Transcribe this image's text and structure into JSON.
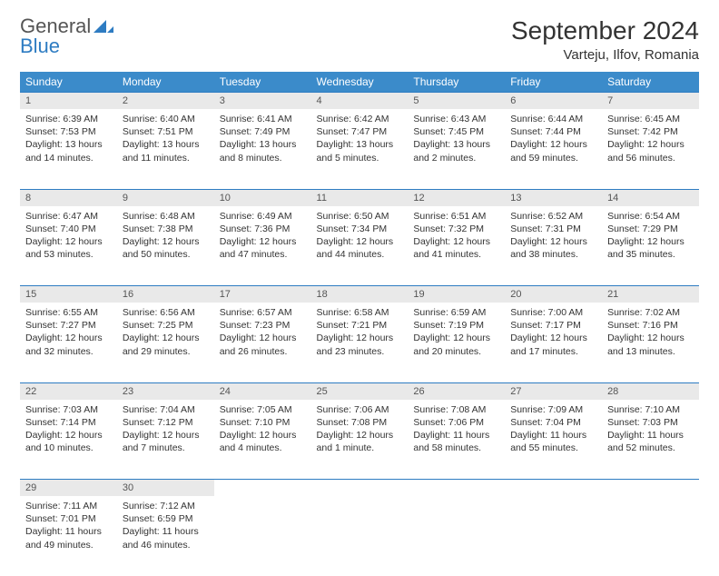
{
  "brand": {
    "name_gray": "General",
    "name_blue": "Blue",
    "accent": "#2e7cc2"
  },
  "title": "September 2024",
  "location": "Varteju, Ilfov, Romania",
  "colors": {
    "header_bg": "#3b8bca",
    "header_text": "#ffffff",
    "daynum_bg": "#e9e9e9",
    "border": "#2e7cc2",
    "text": "#333333"
  },
  "day_headers": [
    "Sunday",
    "Monday",
    "Tuesday",
    "Wednesday",
    "Thursday",
    "Friday",
    "Saturday"
  ],
  "weeks": [
    [
      {
        "n": "1",
        "sr": "Sunrise: 6:39 AM",
        "ss": "Sunset: 7:53 PM",
        "dl": "Daylight: 13 hours and 14 minutes."
      },
      {
        "n": "2",
        "sr": "Sunrise: 6:40 AM",
        "ss": "Sunset: 7:51 PM",
        "dl": "Daylight: 13 hours and 11 minutes."
      },
      {
        "n": "3",
        "sr": "Sunrise: 6:41 AM",
        "ss": "Sunset: 7:49 PM",
        "dl": "Daylight: 13 hours and 8 minutes."
      },
      {
        "n": "4",
        "sr": "Sunrise: 6:42 AM",
        "ss": "Sunset: 7:47 PM",
        "dl": "Daylight: 13 hours and 5 minutes."
      },
      {
        "n": "5",
        "sr": "Sunrise: 6:43 AM",
        "ss": "Sunset: 7:45 PM",
        "dl": "Daylight: 13 hours and 2 minutes."
      },
      {
        "n": "6",
        "sr": "Sunrise: 6:44 AM",
        "ss": "Sunset: 7:44 PM",
        "dl": "Daylight: 12 hours and 59 minutes."
      },
      {
        "n": "7",
        "sr": "Sunrise: 6:45 AM",
        "ss": "Sunset: 7:42 PM",
        "dl": "Daylight: 12 hours and 56 minutes."
      }
    ],
    [
      {
        "n": "8",
        "sr": "Sunrise: 6:47 AM",
        "ss": "Sunset: 7:40 PM",
        "dl": "Daylight: 12 hours and 53 minutes."
      },
      {
        "n": "9",
        "sr": "Sunrise: 6:48 AM",
        "ss": "Sunset: 7:38 PM",
        "dl": "Daylight: 12 hours and 50 minutes."
      },
      {
        "n": "10",
        "sr": "Sunrise: 6:49 AM",
        "ss": "Sunset: 7:36 PM",
        "dl": "Daylight: 12 hours and 47 minutes."
      },
      {
        "n": "11",
        "sr": "Sunrise: 6:50 AM",
        "ss": "Sunset: 7:34 PM",
        "dl": "Daylight: 12 hours and 44 minutes."
      },
      {
        "n": "12",
        "sr": "Sunrise: 6:51 AM",
        "ss": "Sunset: 7:32 PM",
        "dl": "Daylight: 12 hours and 41 minutes."
      },
      {
        "n": "13",
        "sr": "Sunrise: 6:52 AM",
        "ss": "Sunset: 7:31 PM",
        "dl": "Daylight: 12 hours and 38 minutes."
      },
      {
        "n": "14",
        "sr": "Sunrise: 6:54 AM",
        "ss": "Sunset: 7:29 PM",
        "dl": "Daylight: 12 hours and 35 minutes."
      }
    ],
    [
      {
        "n": "15",
        "sr": "Sunrise: 6:55 AM",
        "ss": "Sunset: 7:27 PM",
        "dl": "Daylight: 12 hours and 32 minutes."
      },
      {
        "n": "16",
        "sr": "Sunrise: 6:56 AM",
        "ss": "Sunset: 7:25 PM",
        "dl": "Daylight: 12 hours and 29 minutes."
      },
      {
        "n": "17",
        "sr": "Sunrise: 6:57 AM",
        "ss": "Sunset: 7:23 PM",
        "dl": "Daylight: 12 hours and 26 minutes."
      },
      {
        "n": "18",
        "sr": "Sunrise: 6:58 AM",
        "ss": "Sunset: 7:21 PM",
        "dl": "Daylight: 12 hours and 23 minutes."
      },
      {
        "n": "19",
        "sr": "Sunrise: 6:59 AM",
        "ss": "Sunset: 7:19 PM",
        "dl": "Daylight: 12 hours and 20 minutes."
      },
      {
        "n": "20",
        "sr": "Sunrise: 7:00 AM",
        "ss": "Sunset: 7:17 PM",
        "dl": "Daylight: 12 hours and 17 minutes."
      },
      {
        "n": "21",
        "sr": "Sunrise: 7:02 AM",
        "ss": "Sunset: 7:16 PM",
        "dl": "Daylight: 12 hours and 13 minutes."
      }
    ],
    [
      {
        "n": "22",
        "sr": "Sunrise: 7:03 AM",
        "ss": "Sunset: 7:14 PM",
        "dl": "Daylight: 12 hours and 10 minutes."
      },
      {
        "n": "23",
        "sr": "Sunrise: 7:04 AM",
        "ss": "Sunset: 7:12 PM",
        "dl": "Daylight: 12 hours and 7 minutes."
      },
      {
        "n": "24",
        "sr": "Sunrise: 7:05 AM",
        "ss": "Sunset: 7:10 PM",
        "dl": "Daylight: 12 hours and 4 minutes."
      },
      {
        "n": "25",
        "sr": "Sunrise: 7:06 AM",
        "ss": "Sunset: 7:08 PM",
        "dl": "Daylight: 12 hours and 1 minute."
      },
      {
        "n": "26",
        "sr": "Sunrise: 7:08 AM",
        "ss": "Sunset: 7:06 PM",
        "dl": "Daylight: 11 hours and 58 minutes."
      },
      {
        "n": "27",
        "sr": "Sunrise: 7:09 AM",
        "ss": "Sunset: 7:04 PM",
        "dl": "Daylight: 11 hours and 55 minutes."
      },
      {
        "n": "28",
        "sr": "Sunrise: 7:10 AM",
        "ss": "Sunset: 7:03 PM",
        "dl": "Daylight: 11 hours and 52 minutes."
      }
    ],
    [
      {
        "n": "29",
        "sr": "Sunrise: 7:11 AM",
        "ss": "Sunset: 7:01 PM",
        "dl": "Daylight: 11 hours and 49 minutes."
      },
      {
        "n": "30",
        "sr": "Sunrise: 7:12 AM",
        "ss": "Sunset: 6:59 PM",
        "dl": "Daylight: 11 hours and 46 minutes."
      },
      null,
      null,
      null,
      null,
      null
    ]
  ]
}
